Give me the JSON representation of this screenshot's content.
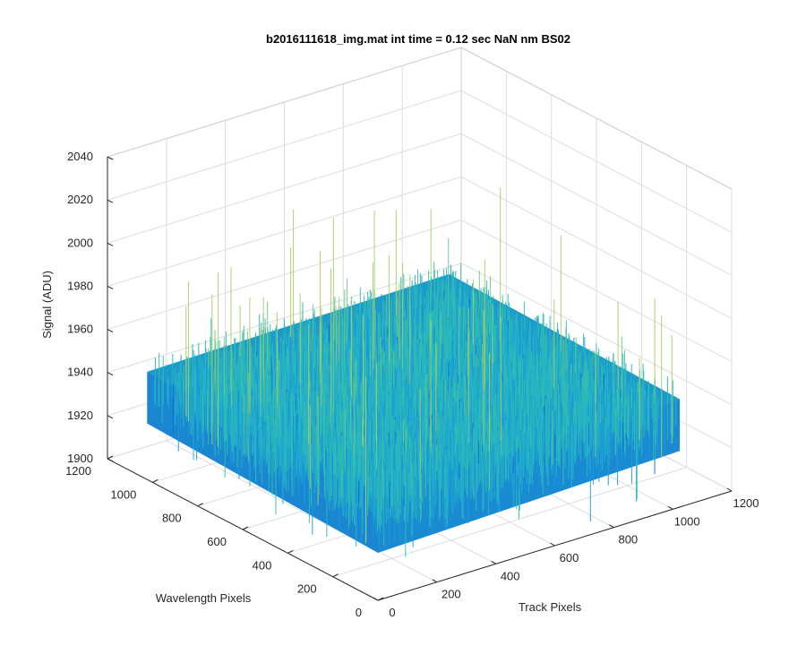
{
  "chart_data": {
    "type": "surface",
    "title": "b2016111618_img.mat int time = 0.12 sec  NaN nm BS02",
    "xlabel": "Track Pixels",
    "ylabel": "Wavelength Pixels",
    "zlabel": "Signal (ADU)",
    "xlim": [
      0,
      1200
    ],
    "ylim": [
      0,
      1200
    ],
    "zlim": [
      1900,
      2040
    ],
    "x_ticks": [
      "0",
      "200",
      "400",
      "600",
      "800",
      "1000",
      "1200"
    ],
    "y_ticks": [
      "0",
      "200",
      "400",
      "600",
      "800",
      "1000",
      "1200"
    ],
    "z_ticks": [
      "1900",
      "1920",
      "1940",
      "1960",
      "1980",
      "2000",
      "2020",
      "2040"
    ],
    "grid": true,
    "surface": {
      "x_range": [
        0,
        1024
      ],
      "y_range": [
        0,
        1024
      ],
      "mean_signal": 1944,
      "noise_range": [
        1900,
        2030
      ],
      "colormap_colors": [
        "#0d6fd9",
        "#1a9bd6",
        "#26b5c4",
        "#35c0aa",
        "#6cc98a",
        "#a8cf6a"
      ]
    }
  }
}
